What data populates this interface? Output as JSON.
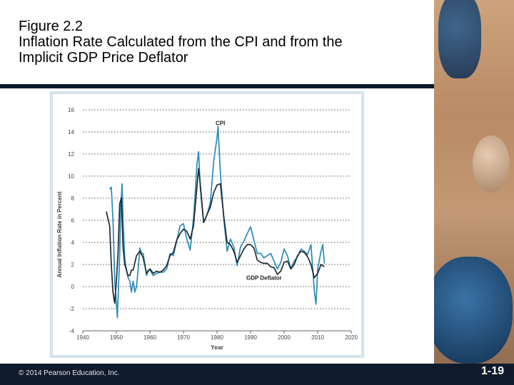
{
  "slide": {
    "figure_label": "Figure 2.2",
    "figure_title_line1": "Inflation Rate Calculated from the CPI and from the",
    "figure_title_line2": "Implicit GDP Price Deflator",
    "copyright": "© 2014 Pearson Education, Inc.",
    "slide_number": "1-19"
  },
  "chart_data": {
    "type": "line",
    "title": "",
    "xlabel": "Year",
    "ylabel": "Annual Inflation Rate in Percent",
    "xlim": [
      1940,
      2020
    ],
    "ylim": [
      -4,
      16
    ],
    "xticks": [
      1940,
      1950,
      1960,
      1970,
      1980,
      1990,
      2000,
      2010,
      2020
    ],
    "yticks": [
      -4,
      -2,
      0,
      2,
      4,
      6,
      8,
      10,
      12,
      14,
      16
    ],
    "grid": "horizontal-dotted",
    "series": [
      {
        "name": "CPI",
        "color": "#2a8bb5",
        "points": [
          [
            1948,
            8.8
          ],
          [
            1948.5,
            9.0
          ],
          [
            1949,
            6.0
          ],
          [
            1949.5,
            0.5
          ],
          [
            1950,
            -1.5
          ],
          [
            1950.3,
            -2.8
          ],
          [
            1950.7,
            0.5
          ],
          [
            1951,
            3.0
          ],
          [
            1951.3,
            7.0
          ],
          [
            1951.7,
            9.3
          ],
          [
            1952,
            6.0
          ],
          [
            1952.5,
            2.5
          ],
          [
            1953,
            1.5
          ],
          [
            1953.5,
            0.8
          ],
          [
            1954,
            0.5
          ],
          [
            1954.5,
            -0.5
          ],
          [
            1955,
            0.5
          ],
          [
            1955.5,
            -0.5
          ],
          [
            1956,
            0.0
          ],
          [
            1956.5,
            1.5
          ],
          [
            1957,
            3.5
          ],
          [
            1957.5,
            3.0
          ],
          [
            1958,
            3.0
          ],
          [
            1958.5,
            2.0
          ],
          [
            1959,
            1.0
          ],
          [
            1959.5,
            1.5
          ],
          [
            1960,
            1.5
          ],
          [
            1961,
            1.0
          ],
          [
            1962,
            1.2
          ],
          [
            1963,
            1.3
          ],
          [
            1964,
            1.3
          ],
          [
            1965,
            1.6
          ],
          [
            1966,
            3.0
          ],
          [
            1967,
            2.8
          ],
          [
            1968,
            4.2
          ],
          [
            1969,
            5.5
          ],
          [
            1970,
            5.7
          ],
          [
            1971,
            4.3
          ],
          [
            1972,
            3.3
          ],
          [
            1973,
            6.2
          ],
          [
            1973.5,
            8.5
          ],
          [
            1974,
            11.0
          ],
          [
            1974.5,
            12.2
          ],
          [
            1975,
            9.0
          ],
          [
            1976,
            5.8
          ],
          [
            1977,
            6.5
          ],
          [
            1978,
            7.6
          ],
          [
            1979,
            11.3
          ],
          [
            1980,
            13.5
          ],
          [
            1980.3,
            14.5
          ],
          [
            1981,
            10.3
          ],
          [
            1982,
            6.2
          ],
          [
            1983,
            3.2
          ],
          [
            1984,
            4.3
          ],
          [
            1985,
            3.6
          ],
          [
            1986,
            1.9
          ],
          [
            1987,
            3.6
          ],
          [
            1988,
            4.1
          ],
          [
            1989,
            4.8
          ],
          [
            1990,
            5.4
          ],
          [
            1991,
            4.2
          ],
          [
            1992,
            3.0
          ],
          [
            1993,
            3.0
          ],
          [
            1994,
            2.6
          ],
          [
            1995,
            2.8
          ],
          [
            1996,
            3.0
          ],
          [
            1997,
            2.3
          ],
          [
            1998,
            1.6
          ],
          [
            1999,
            2.2
          ],
          [
            2000,
            3.4
          ],
          [
            2001,
            2.8
          ],
          [
            2002,
            1.6
          ],
          [
            2003,
            2.3
          ],
          [
            2004,
            2.7
          ],
          [
            2005,
            3.4
          ],
          [
            2006,
            3.2
          ],
          [
            2007,
            2.9
          ],
          [
            2008,
            3.8
          ],
          [
            2009,
            -0.4
          ],
          [
            2009.5,
            -1.6
          ],
          [
            2010,
            1.6
          ],
          [
            2011,
            3.2
          ],
          [
            2011.5,
            3.8
          ],
          [
            2012,
            2.1
          ]
        ]
      },
      {
        "name": "GDP Deflator",
        "color": "#1e2a36",
        "points": [
          [
            1947,
            6.8
          ],
          [
            1948,
            5.5
          ],
          [
            1948.5,
            2.0
          ],
          [
            1949,
            -0.5
          ],
          [
            1949.5,
            -1.5
          ],
          [
            1950,
            0.5
          ],
          [
            1950.5,
            3.0
          ],
          [
            1951,
            7.5
          ],
          [
            1951.5,
            8.0
          ],
          [
            1952,
            3.5
          ],
          [
            1952.5,
            2.0
          ],
          [
            1953,
            1.5
          ],
          [
            1953.5,
            1.0
          ],
          [
            1954,
            1.0
          ],
          [
            1954.5,
            1.5
          ],
          [
            1955,
            1.5
          ],
          [
            1956,
            2.8
          ],
          [
            1957,
            3.2
          ],
          [
            1958,
            2.6
          ],
          [
            1959,
            1.2
          ],
          [
            1960,
            1.6
          ],
          [
            1961,
            1.2
          ],
          [
            1962,
            1.4
          ],
          [
            1963,
            1.3
          ],
          [
            1964,
            1.5
          ],
          [
            1965,
            1.9
          ],
          [
            1966,
            2.8
          ],
          [
            1967,
            3.1
          ],
          [
            1968,
            4.2
          ],
          [
            1969,
            4.8
          ],
          [
            1970,
            5.2
          ],
          [
            1971,
            5.0
          ],
          [
            1972,
            4.3
          ],
          [
            1973,
            5.5
          ],
          [
            1974,
            9.0
          ],
          [
            1974.5,
            10.7
          ],
          [
            1975,
            9.3
          ],
          [
            1976,
            5.8
          ],
          [
            1977,
            6.5
          ],
          [
            1978,
            7.2
          ],
          [
            1979,
            8.5
          ],
          [
            1980,
            9.2
          ],
          [
            1981,
            9.3
          ],
          [
            1982,
            6.4
          ],
          [
            1983,
            4.0
          ],
          [
            1984,
            3.8
          ],
          [
            1985,
            3.2
          ],
          [
            1986,
            2.2
          ],
          [
            1987,
            2.8
          ],
          [
            1988,
            3.4
          ],
          [
            1989,
            3.8
          ],
          [
            1990,
            3.8
          ],
          [
            1991,
            3.5
          ],
          [
            1992,
            2.4
          ],
          [
            1993,
            2.2
          ],
          [
            1994,
            2.1
          ],
          [
            1995,
            2.1
          ],
          [
            1996,
            1.8
          ],
          [
            1997,
            1.7
          ],
          [
            1998,
            1.1
          ],
          [
            1999,
            1.4
          ],
          [
            2000,
            2.2
          ],
          [
            2001,
            2.3
          ],
          [
            2002,
            1.6
          ],
          [
            2003,
            2.0
          ],
          [
            2004,
            2.8
          ],
          [
            2005,
            3.2
          ],
          [
            2006,
            3.1
          ],
          [
            2007,
            2.7
          ],
          [
            2008,
            2.0
          ],
          [
            2009,
            0.8
          ],
          [
            2010,
            1.2
          ],
          [
            2011,
            2.0
          ],
          [
            2012,
            1.8
          ]
        ]
      }
    ],
    "annotations": [
      {
        "text": "CPI",
        "x": 1981,
        "y": 14.6
      },
      {
        "text": "GDP Deflator",
        "x": 1994,
        "y": 0.6
      }
    ]
  }
}
